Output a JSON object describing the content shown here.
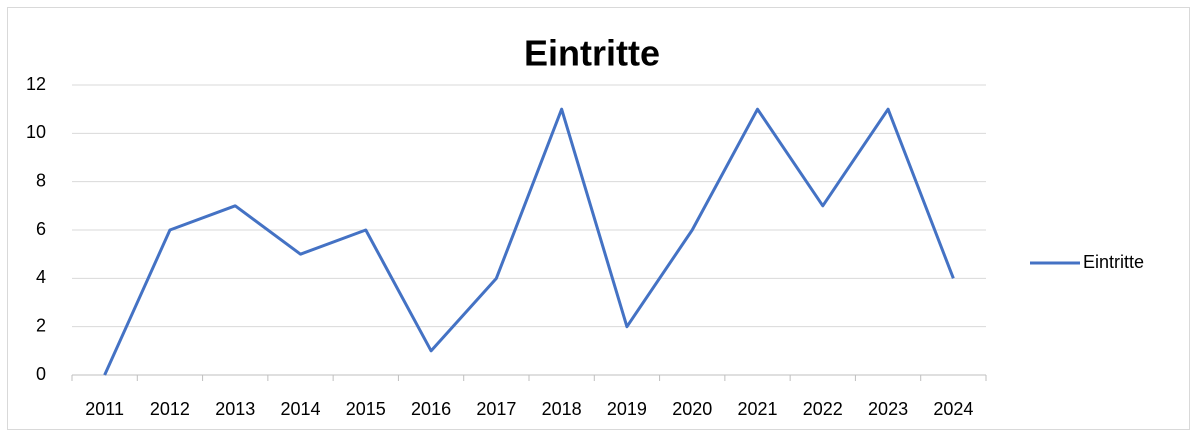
{
  "chart_data": {
    "type": "line",
    "title": "Eintritte",
    "categories": [
      "2011",
      "2012",
      "2013",
      "2014",
      "2015",
      "2016",
      "2017",
      "2018",
      "2019",
      "2020",
      "2021",
      "2022",
      "2023",
      "2024"
    ],
    "series": [
      {
        "name": "Eintritte",
        "color": "#4472c4",
        "values": [
          0,
          6,
          7,
          5,
          6,
          1,
          4,
          11,
          2,
          6,
          11,
          7,
          11,
          4
        ]
      }
    ],
    "ylim": [
      0,
      12
    ],
    "yticks": [
      0,
      2,
      4,
      6,
      8,
      10,
      12
    ],
    "grid": true,
    "legend": "right"
  }
}
